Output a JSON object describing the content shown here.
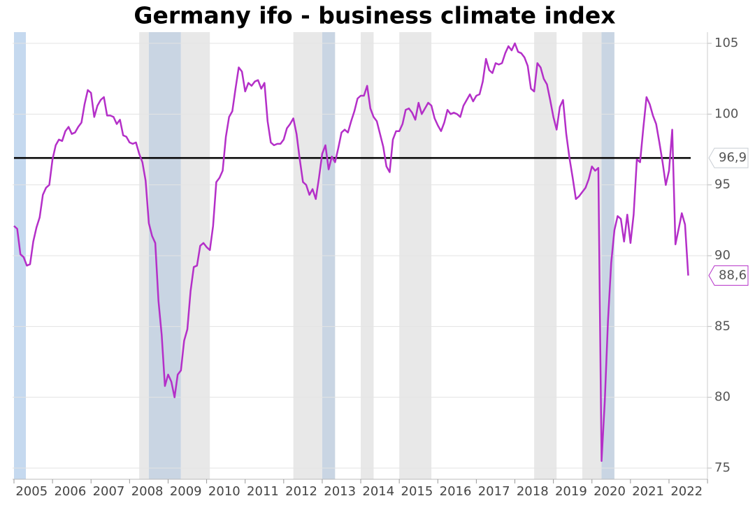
{
  "chart_data": {
    "type": "line",
    "title": "Germany ifo -  business climate index",
    "categories": [
      null,
      null,
      null,
      null,
      null,
      null,
      "2005",
      null,
      null,
      null,
      null,
      null,
      null,
      null,
      null,
      null,
      null,
      null,
      "2006",
      null,
      null,
      null,
      null,
      null,
      null,
      null,
      null,
      null,
      null,
      null,
      "2007",
      null,
      null,
      null,
      null,
      null,
      null,
      null,
      null,
      null,
      null,
      null,
      "2008",
      null,
      null,
      null,
      null,
      null,
      null,
      null,
      null,
      null,
      null,
      null,
      "2009",
      null,
      null,
      null,
      null,
      null,
      null,
      null,
      null,
      null,
      null,
      null,
      "2010",
      null,
      null,
      null,
      null,
      null,
      null,
      null,
      null,
      null,
      null,
      null,
      "2011",
      null,
      null,
      null,
      null,
      null,
      null,
      null,
      null,
      null,
      null,
      null,
      "2012",
      null,
      null,
      null,
      null,
      null,
      null,
      null,
      null,
      null,
      null,
      null,
      "2013",
      null,
      null,
      null,
      null,
      null,
      null,
      null,
      null,
      null,
      null,
      null,
      "2014",
      null,
      null,
      null,
      null,
      null,
      null,
      null,
      null,
      null,
      null,
      null,
      "2015",
      null,
      null,
      null,
      null,
      null,
      null,
      null,
      null,
      null,
      null,
      null,
      "2016",
      null,
      null,
      null,
      null,
      null,
      null,
      null,
      null,
      null,
      null,
      null,
      "2017",
      null,
      null,
      null,
      null,
      null,
      null,
      null,
      null,
      null,
      null,
      null,
      "2018",
      null,
      null,
      null,
      null,
      null,
      null,
      null,
      null,
      null,
      null,
      null,
      "2019",
      null,
      null,
      null,
      null,
      null,
      null,
      null,
      null,
      null,
      null,
      null,
      "2020",
      null,
      null,
      null,
      null,
      null,
      null,
      null,
      null,
      null,
      null,
      null,
      "2021",
      null,
      null,
      null,
      null,
      null,
      null,
      null,
      null,
      null,
      null,
      null,
      "2022"
    ],
    "series": [
      {
        "color": "#b42fc8",
        "values": [
          92.1,
          91.9,
          90.1,
          89.9,
          89.3,
          89.4,
          91.0,
          92.0,
          92.7,
          94.3,
          94.8,
          95.0,
          96.8,
          97.8,
          98.2,
          98.1,
          98.8,
          99.1,
          98.6,
          98.7,
          99.1,
          99.4,
          100.7,
          101.7,
          101.5,
          99.8,
          100.6,
          101.0,
          101.2,
          99.9,
          99.9,
          99.8,
          99.3,
          99.6,
          98.5,
          98.4,
          98.0,
          97.9,
          98.0,
          97.2,
          96.6,
          95.3,
          92.3,
          91.4,
          90.9,
          86.8,
          84.4,
          80.8,
          81.6,
          81.1,
          80.0,
          81.6,
          81.9,
          84.0,
          84.8,
          87.5,
          89.2,
          89.3,
          90.7,
          90.9,
          90.6,
          90.4,
          92.1,
          95.2,
          95.5,
          96.0,
          98.4,
          99.8,
          100.2,
          101.8,
          103.3,
          103.0,
          101.6,
          102.2,
          102.0,
          102.3,
          102.4,
          101.8,
          102.2,
          99.5,
          98.0,
          97.8,
          97.9,
          97.9,
          98.2,
          99.0,
          99.3,
          99.7,
          98.6,
          96.8,
          95.2,
          95.0,
          94.3,
          94.7,
          94.0,
          95.5,
          97.2,
          97.8,
          96.1,
          97.0,
          96.6,
          97.6,
          98.7,
          98.9,
          98.7,
          99.5,
          100.2,
          101.1,
          101.3,
          101.3,
          102.0,
          100.4,
          99.8,
          99.5,
          98.6,
          97.7,
          96.3,
          95.9,
          98.2,
          98.8,
          98.8,
          99.3,
          100.3,
          100.4,
          100.1,
          99.6,
          100.8,
          100.0,
          100.4,
          100.8,
          100.6,
          99.7,
          99.2,
          98.8,
          99.4,
          100.3,
          100.0,
          100.1,
          100.0,
          99.8,
          100.6,
          101.0,
          101.4,
          100.9,
          101.3,
          101.4,
          102.3,
          103.9,
          103.1,
          102.9,
          103.6,
          103.5,
          103.6,
          104.3,
          104.8,
          104.5,
          105.0,
          104.4,
          104.3,
          104.0,
          103.4,
          101.8,
          101.6,
          103.6,
          103.3,
          102.5,
          102.1,
          101.0,
          99.8,
          98.9,
          100.5,
          101.0,
          98.6,
          96.9,
          95.5,
          94.0,
          94.2,
          94.5,
          94.8,
          95.4,
          96.3,
          96.0,
          96.2,
          75.5,
          79.7,
          85.4,
          89.5,
          91.8,
          92.8,
          92.6,
          91.0,
          92.9,
          90.9,
          92.9,
          96.8,
          96.6,
          99.0,
          101.2,
          100.7,
          99.9,
          99.3,
          98.0,
          96.6,
          95.0,
          96.0,
          98.9,
          90.8,
          91.9,
          93.0,
          92.2,
          88.6
        ]
      }
    ],
    "end_label": "88,6",
    "reference": {
      "value": 96.9,
      "label": "96,9",
      "color": "#000000"
    },
    "shaded": [
      {
        "start": 0,
        "end": 3.7,
        "color": "#c5d9ef"
      },
      {
        "start": 39,
        "end": 42,
        "color": "#e8e8e8"
      },
      {
        "start": 42,
        "end": 52,
        "color": "#c9d5e3"
      },
      {
        "start": 52,
        "end": 61,
        "color": "#e8e8e8"
      },
      {
        "start": 87,
        "end": 96,
        "color": "#e8e8e8"
      },
      {
        "start": 96,
        "end": 100,
        "color": "#c9d5e3"
      },
      {
        "start": 108,
        "end": 112,
        "color": "#e8e8e8"
      },
      {
        "start": 120,
        "end": 130,
        "color": "#e8e8e8"
      },
      {
        "start": 162,
        "end": 169,
        "color": "#e8e8e8"
      },
      {
        "start": 177,
        "end": 183,
        "color": "#e8e8e8"
      },
      {
        "start": 183,
        "end": 187,
        "color": "#c9d5e3"
      }
    ],
    "ylim": [
      75,
      105
    ],
    "yticks": [
      75,
      80,
      85,
      90,
      95,
      100,
      105
    ],
    "grid": true
  }
}
